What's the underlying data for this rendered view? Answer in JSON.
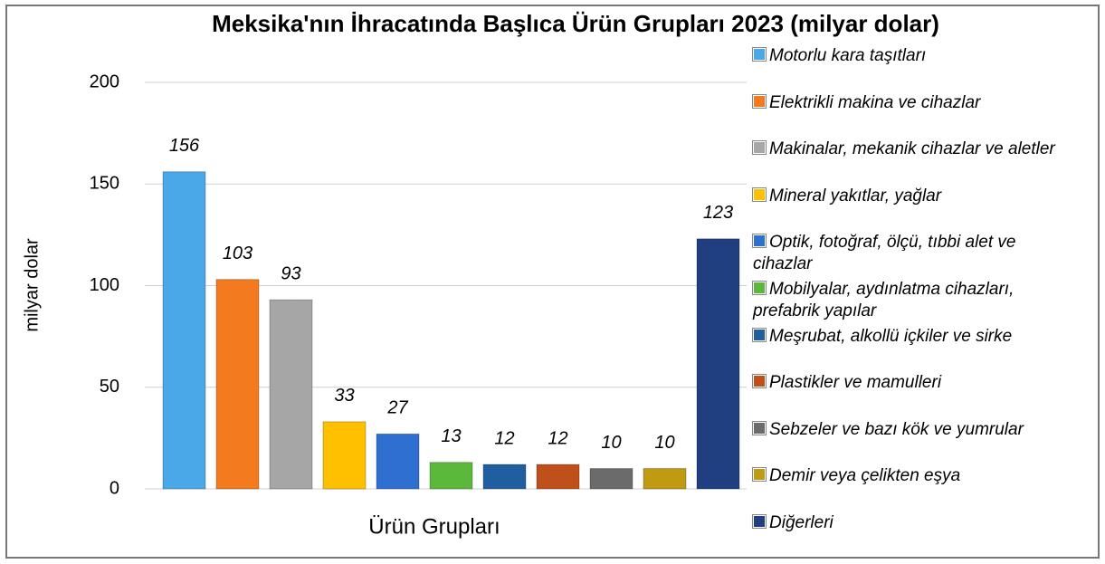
{
  "chart_data": {
    "type": "bar",
    "title": "Meksika'nın İhracatında Başlıca Ürün Grupları 2023 (milyar dolar)",
    "categories": [
      "Ürün Grupları"
    ],
    "y_label": "milyar dolar",
    "ylim": [
      0,
      200
    ],
    "yticks": [
      0,
      50,
      100,
      150,
      200
    ],
    "grid": true,
    "legend": "right",
    "series": [
      {
        "name": "Motorlu kara taşıtları",
        "color": "#4aa8e8",
        "values": [
          156
        ]
      },
      {
        "name": "Elektrikli makina ve cihazlar",
        "color": "#f47a20",
        "values": [
          103
        ]
      },
      {
        "name": "Makinalar, mekanik cihazlar ve aletler",
        "color": "#a6a6a6",
        "values": [
          93
        ]
      },
      {
        "name": "Mineral yakıtlar, yağlar",
        "color": "#ffc000",
        "values": [
          33
        ]
      },
      {
        "name": "Optik, fotoğraf, ölçü, tıbbi alet ve cihazlar",
        "color": "#2f6fd0",
        "values": [
          27
        ]
      },
      {
        "name": "Mobilyalar, aydınlatma cihazları, prefabrik yapılar",
        "color": "#5cb83a",
        "values": [
          13
        ]
      },
      {
        "name": "Meşrubat, alkollü içkiler ve sirke",
        "color": "#1f5fa0",
        "values": [
          12
        ]
      },
      {
        "name": "Plastikler ve mamulleri",
        "color": "#c0501a",
        "values": [
          12
        ]
      },
      {
        "name": "Sebzeler ve bazı kök ve yumrular",
        "color": "#6b6b6b",
        "values": [
          10
        ]
      },
      {
        "name": "Demir veya çelikten eşya",
        "color": "#c09a10",
        "values": [
          10
        ]
      },
      {
        "name": "Diğerleri",
        "color": "#1f3f80",
        "values": [
          123
        ]
      }
    ]
  }
}
